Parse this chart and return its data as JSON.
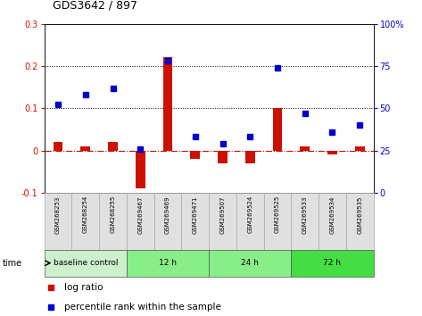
{
  "title": "GDS3642 / 897",
  "samples": [
    "GSM268253",
    "GSM268254",
    "GSM268255",
    "GSM269467",
    "GSM269469",
    "GSM269471",
    "GSM269507",
    "GSM269524",
    "GSM269525",
    "GSM269533",
    "GSM269534",
    "GSM269535"
  ],
  "log_ratio": [
    0.02,
    0.01,
    0.02,
    -0.09,
    0.22,
    -0.02,
    -0.03,
    -0.03,
    0.1,
    0.01,
    -0.01,
    0.01
  ],
  "percentile_rank_pct": [
    52,
    58,
    62,
    26,
    78,
    33,
    29,
    33,
    74,
    47,
    36,
    40
  ],
  "groups": [
    {
      "label": "baseline control",
      "start": 0,
      "end": 3,
      "color": "#ccf0cc"
    },
    {
      "label": "12 h",
      "start": 3,
      "end": 6,
      "color": "#88ee88"
    },
    {
      "label": "24 h",
      "start": 6,
      "end": 9,
      "color": "#88ee88"
    },
    {
      "label": "72 h",
      "start": 9,
      "end": 12,
      "color": "#44dd44"
    }
  ],
  "ylim_left": [
    -0.1,
    0.3
  ],
  "ylim_right": [
    0,
    100
  ],
  "yticks_left": [
    -0.1,
    0.0,
    0.1,
    0.2,
    0.3
  ],
  "yticks_right": [
    0,
    25,
    50,
    75,
    100
  ],
  "bar_color": "#cc1100",
  "dot_color": "#0000cc",
  "hline_color": "#cc1100",
  "dotline_color": "#000000",
  "bar_width": 0.35,
  "sample_bg": "#e0e0e0",
  "sample_border": "#aaaaaa"
}
